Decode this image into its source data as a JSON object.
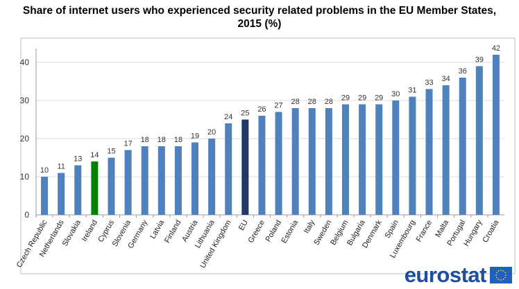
{
  "chart_data": {
    "type": "bar",
    "title": "Share of internet users who experienced security related problems in the EU Member States, 2015 (%)",
    "title_lines": [
      "Share of internet users who experienced security related problems in the EU Member States,",
      "2015 (%)"
    ],
    "categories": [
      "Czech Republic",
      "Netherlands",
      "Slovakia",
      "Ireland",
      "Cyprus",
      "Slovenia",
      "Germany",
      "Latvia",
      "Finland",
      "Austria",
      "Lithuania",
      "United Kingdom",
      "EU",
      "Greece",
      "Poland",
      "Estonia",
      "Italy",
      "Sweden",
      "Belgium",
      "Bulgaria",
      "Denmark",
      "Spain",
      "Luxembourg",
      "France",
      "Malta",
      "Portugal",
      "Hungary",
      "Croatia"
    ],
    "values": [
      10,
      11,
      13,
      14,
      15,
      17,
      18,
      18,
      18,
      19,
      20,
      24,
      25,
      26,
      27,
      28,
      28,
      28,
      29,
      29,
      29,
      30,
      31,
      33,
      34,
      36,
      39,
      42
    ],
    "ylim": [
      0,
      44
    ],
    "yticks": [
      0,
      10,
      20,
      30,
      40
    ],
    "grid": true,
    "xlabel": "",
    "ylabel": "",
    "colors": {
      "default": "#4f81bd",
      "highlight_ireland": "#008000",
      "highlight_eu": "#1f3864"
    },
    "highlight": {
      "Ireland": "#008000",
      "EU": "#1f3864"
    }
  },
  "logo": {
    "text": "eurostat",
    "flag": "eu-flag-icon"
  }
}
